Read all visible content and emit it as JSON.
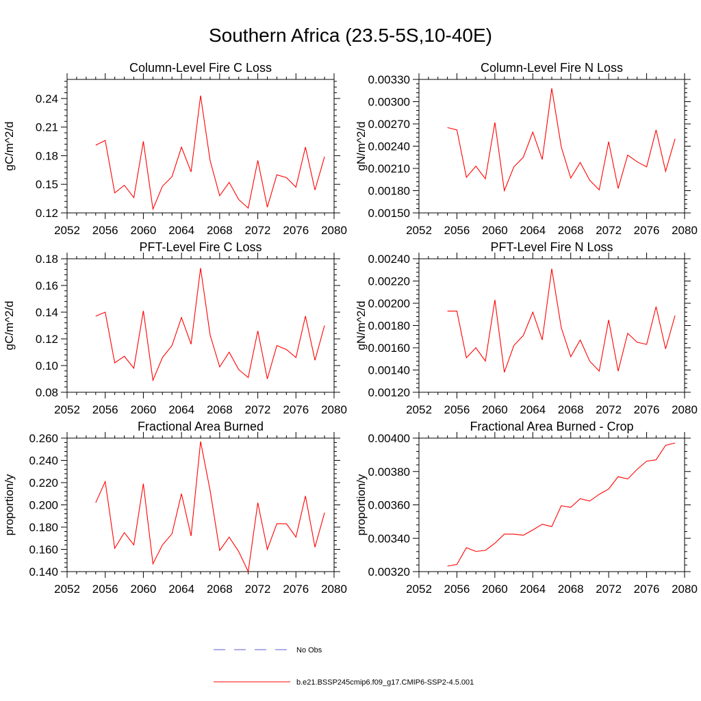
{
  "title": "Southern Africa (23.5-5S,10-40E)",
  "legend": {
    "items": [
      {
        "label": "No Obs",
        "color": "#5b5bd6",
        "dash": true
      },
      {
        "label": "b.e21.BSSP245cmip6.f09_g17.CMIP6-SSP2-4.5.001",
        "color": "#ff0000",
        "dash": false
      }
    ]
  },
  "chart_data": [
    {
      "type": "line",
      "title": "Column-Level Fire C Loss",
      "ylabel": "gC/m^2/d",
      "xlim": [
        2052,
        2080
      ],
      "ylim": [
        0.12,
        0.26
      ],
      "xticks": [
        2052,
        2056,
        2060,
        2064,
        2068,
        2072,
        2076,
        2080
      ],
      "yticks": [
        0.12,
        0.15,
        0.18,
        0.21,
        0.24
      ],
      "ytick_labels": [
        "0.12",
        "0.15",
        "0.18",
        "0.21",
        "0.24"
      ],
      "x": [
        2055,
        2056,
        2057,
        2058,
        2059,
        2060,
        2061,
        2062,
        2063,
        2064,
        2065,
        2066,
        2067,
        2068,
        2069,
        2070,
        2071,
        2072,
        2073,
        2074,
        2075,
        2076,
        2077,
        2078,
        2079
      ],
      "series": [
        {
          "color": "#ff0000",
          "values": [
            0.191,
            0.196,
            0.141,
            0.149,
            0.136,
            0.195,
            0.124,
            0.148,
            0.158,
            0.189,
            0.163,
            0.243,
            0.175,
            0.138,
            0.152,
            0.134,
            0.125,
            0.175,
            0.126,
            0.16,
            0.157,
            0.147,
            0.189,
            0.144,
            0.179
          ]
        }
      ]
    },
    {
      "type": "line",
      "title": "Column-Level Fire N Loss",
      "ylabel": "gN/m^2/d",
      "xlim": [
        2052,
        2080
      ],
      "ylim": [
        0.0015,
        0.0033
      ],
      "xticks": [
        2052,
        2056,
        2060,
        2064,
        2068,
        2072,
        2076,
        2080
      ],
      "yticks": [
        0.0015,
        0.0018,
        0.0021,
        0.0024,
        0.0027,
        0.003,
        0.0033
      ],
      "ytick_labels": [
        "0.00150",
        "0.00180",
        "0.00210",
        "0.00240",
        "0.00270",
        "0.00300",
        "0.00330"
      ],
      "x": [
        2055,
        2056,
        2057,
        2058,
        2059,
        2060,
        2061,
        2062,
        2063,
        2064,
        2065,
        2066,
        2067,
        2068,
        2069,
        2070,
        2071,
        2072,
        2073,
        2074,
        2075,
        2076,
        2077,
        2078,
        2079
      ],
      "series": [
        {
          "color": "#ff0000",
          "values": [
            0.00265,
            0.00262,
            0.00198,
            0.00213,
            0.00196,
            0.00272,
            0.0018,
            0.00212,
            0.00225,
            0.00259,
            0.00222,
            0.00318,
            0.00239,
            0.00197,
            0.00218,
            0.00194,
            0.00181,
            0.00246,
            0.00183,
            0.00228,
            0.00219,
            0.00212,
            0.00262,
            0.00206,
            0.0025
          ]
        }
      ]
    },
    {
      "type": "line",
      "title": "PFT-Level Fire C Loss",
      "ylabel": "gC/m^2/d",
      "xlim": [
        2052,
        2080
      ],
      "ylim": [
        0.08,
        0.18
      ],
      "xticks": [
        2052,
        2056,
        2060,
        2064,
        2068,
        2072,
        2076,
        2080
      ],
      "yticks": [
        0.08,
        0.1,
        0.12,
        0.14,
        0.16,
        0.18
      ],
      "ytick_labels": [
        "0.08",
        "0.10",
        "0.12",
        "0.14",
        "0.16",
        "0.18"
      ],
      "x": [
        2055,
        2056,
        2057,
        2058,
        2059,
        2060,
        2061,
        2062,
        2063,
        2064,
        2065,
        2066,
        2067,
        2068,
        2069,
        2070,
        2071,
        2072,
        2073,
        2074,
        2075,
        2076,
        2077,
        2078,
        2079
      ],
      "series": [
        {
          "color": "#ff0000",
          "values": [
            0.137,
            0.14,
            0.102,
            0.107,
            0.098,
            0.141,
            0.089,
            0.106,
            0.115,
            0.136,
            0.116,
            0.173,
            0.123,
            0.099,
            0.11,
            0.097,
            0.091,
            0.126,
            0.09,
            0.115,
            0.112,
            0.106,
            0.137,
            0.104,
            0.13
          ]
        }
      ]
    },
    {
      "type": "line",
      "title": "PFT-Level Fire N Loss",
      "ylabel": "gN/m^2/d",
      "xlim": [
        2052,
        2080
      ],
      "ylim": [
        0.0012,
        0.0024
      ],
      "xticks": [
        2052,
        2056,
        2060,
        2064,
        2068,
        2072,
        2076,
        2080
      ],
      "yticks": [
        0.0012,
        0.0014,
        0.0016,
        0.0018,
        0.002,
        0.0022,
        0.0024
      ],
      "ytick_labels": [
        "0.00120",
        "0.00140",
        "0.00160",
        "0.00180",
        "0.00200",
        "0.00220",
        "0.00240"
      ],
      "x": [
        2055,
        2056,
        2057,
        2058,
        2059,
        2060,
        2061,
        2062,
        2063,
        2064,
        2065,
        2066,
        2067,
        2068,
        2069,
        2070,
        2071,
        2072,
        2073,
        2074,
        2075,
        2076,
        2077,
        2078,
        2079
      ],
      "series": [
        {
          "color": "#ff0000",
          "values": [
            0.00193,
            0.00193,
            0.00151,
            0.0016,
            0.00148,
            0.00203,
            0.00138,
            0.00162,
            0.00171,
            0.00192,
            0.00167,
            0.00231,
            0.00178,
            0.00152,
            0.00167,
            0.00148,
            0.00139,
            0.00185,
            0.00139,
            0.00173,
            0.00165,
            0.00163,
            0.00197,
            0.00159,
            0.00189
          ]
        }
      ]
    },
    {
      "type": "line",
      "title": "Fractional Area Burned",
      "ylabel": "proportion/y",
      "xlim": [
        2052,
        2080
      ],
      "ylim": [
        0.14,
        0.26
      ],
      "xticks": [
        2052,
        2056,
        2060,
        2064,
        2068,
        2072,
        2076,
        2080
      ],
      "yticks": [
        0.14,
        0.16,
        0.18,
        0.2,
        0.22,
        0.24,
        0.26
      ],
      "ytick_labels": [
        "0.140",
        "0.160",
        "0.180",
        "0.200",
        "0.220",
        "0.240",
        "0.260"
      ],
      "x": [
        2055,
        2056,
        2057,
        2058,
        2059,
        2060,
        2061,
        2062,
        2063,
        2064,
        2065,
        2066,
        2067,
        2068,
        2069,
        2070,
        2071,
        2072,
        2073,
        2074,
        2075,
        2076,
        2077,
        2078,
        2079
      ],
      "series": [
        {
          "color": "#ff0000",
          "values": [
            0.202,
            0.221,
            0.161,
            0.175,
            0.164,
            0.219,
            0.147,
            0.164,
            0.174,
            0.21,
            0.172,
            0.257,
            0.213,
            0.159,
            0.171,
            0.158,
            0.14,
            0.202,
            0.16,
            0.183,
            0.183,
            0.171,
            0.208,
            0.162,
            0.193
          ]
        }
      ]
    },
    {
      "type": "line",
      "title": "Fractional Area Burned - Crop",
      "ylabel": "proportion/y",
      "xlim": [
        2052,
        2080
      ],
      "ylim": [
        0.0032,
        0.004
      ],
      "xticks": [
        2052,
        2056,
        2060,
        2064,
        2068,
        2072,
        2076,
        2080
      ],
      "yticks": [
        0.0032,
        0.0034,
        0.0036,
        0.0038,
        0.004
      ],
      "ytick_labels": [
        "0.00320",
        "0.00340",
        "0.00360",
        "0.00380",
        "0.00400"
      ],
      "x": [
        2055,
        2056,
        2057,
        2058,
        2059,
        2060,
        2061,
        2062,
        2063,
        2064,
        2065,
        2066,
        2067,
        2068,
        2069,
        2070,
        2071,
        2072,
        2073,
        2074,
        2075,
        2076,
        2077,
        2078,
        2079
      ],
      "series": [
        {
          "color": "#ff0000",
          "values": [
            0.003233,
            0.003243,
            0.003343,
            0.003321,
            0.003327,
            0.00337,
            0.003425,
            0.003425,
            0.003418,
            0.00345,
            0.003484,
            0.00347,
            0.003595,
            0.003585,
            0.003637,
            0.003623,
            0.003663,
            0.003695,
            0.003769,
            0.003755,
            0.003813,
            0.003862,
            0.00387,
            0.003957,
            0.003971
          ]
        }
      ]
    }
  ]
}
